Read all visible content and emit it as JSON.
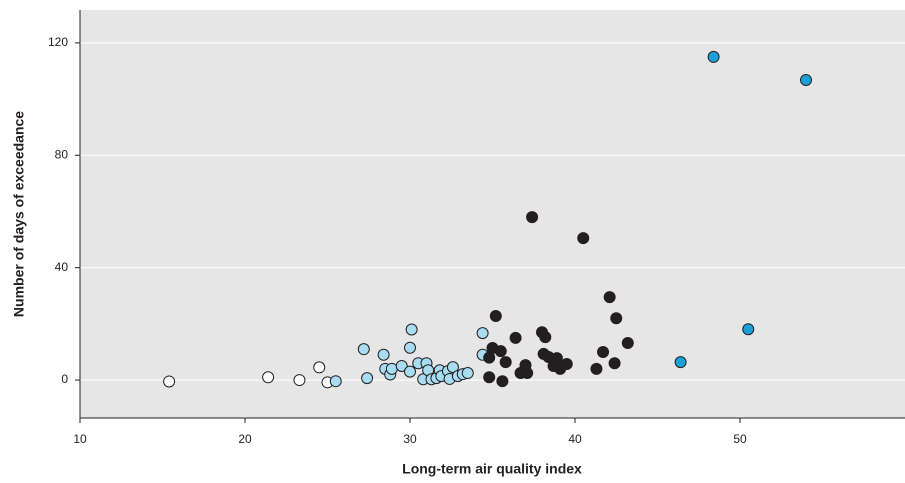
{
  "chart_data": {
    "type": "scatter",
    "xlabel": "Long-term air quality index",
    "ylabel": "Number of days of exceedance",
    "xlim": [
      10,
      60
    ],
    "ylim": [
      -13.5,
      131.7
    ],
    "xticks": [
      10,
      20,
      30,
      40,
      50
    ],
    "yticks": [
      0,
      40,
      80,
      120
    ],
    "grid": true,
    "series": [
      {
        "color": "#ffffff",
        "x": [
          15.4,
          21.4,
          23.3,
          24.5,
          25
        ],
        "values": [
          -0.5,
          1,
          0,
          4.5,
          -0.8
        ]
      },
      {
        "color": "#a8dcf2",
        "x": [
          25.5,
          27.2,
          27.4,
          28.4,
          28.5,
          28.8,
          28.9,
          29.5,
          30,
          30,
          30.1,
          30.5,
          30.8,
          31,
          31.1,
          31.3,
          31.6,
          31.8,
          31.9,
          32.3,
          32.4,
          32.6,
          32.9,
          33.2,
          33.5,
          34.4,
          34.4
        ],
        "values": [
          -0.4,
          11,
          0.7,
          9,
          4,
          2,
          4,
          5,
          11.5,
          3,
          18,
          6,
          0.3,
          6,
          3.5,
          0.3,
          0.7,
          3.5,
          1.4,
          3.2,
          0.4,
          4.6,
          1.4,
          2.1,
          2.5,
          16.7,
          9
        ]
      },
      {
        "color": "#231f20",
        "x": [
          34.8,
          34.8,
          35,
          35.2,
          35.5,
          35.6,
          35.8,
          36.4,
          36.7,
          37,
          37.1,
          37.4,
          38,
          38.1,
          38.2,
          38.4,
          38.7,
          38.9,
          39.1,
          39.5,
          40.5,
          41.3,
          41.7,
          42.1,
          42.4,
          42.5,
          43.2
        ],
        "values": [
          1,
          8,
          11.4,
          22.8,
          10.3,
          -0.4,
          6.4,
          15,
          2.5,
          5.3,
          2.5,
          58,
          17,
          9.3,
          15.3,
          8.2,
          5,
          7.8,
          4,
          5.7,
          50.5,
          4,
          10,
          29.5,
          6,
          22,
          13.2
        ]
      },
      {
        "color": "#1ba1d8",
        "x": [
          46.4,
          48.4,
          50.5,
          54
        ],
        "values": [
          6.4,
          115,
          18.1,
          106.8
        ]
      }
    ]
  }
}
